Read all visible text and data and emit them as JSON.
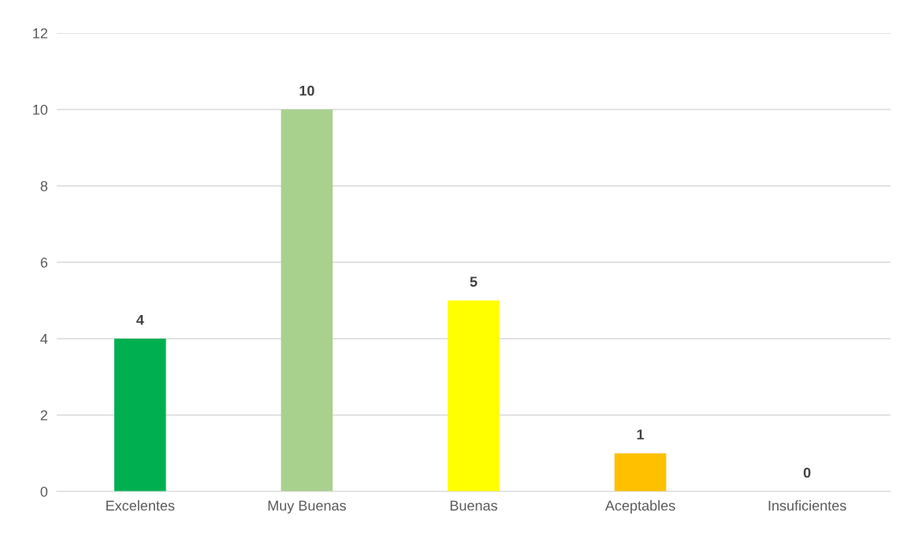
{
  "chart_data": {
    "type": "bar",
    "categories": [
      "Excelentes",
      "Muy Buenas",
      "Buenas",
      "Aceptables",
      "Insuficientes"
    ],
    "values": [
      4,
      10,
      5,
      1,
      0
    ],
    "colors": [
      "#00b050",
      "#a9d18e",
      "#ffff00",
      "#ffc000",
      "#ff0000"
    ],
    "ylim": [
      0,
      12
    ],
    "yticks": [
      0,
      2,
      4,
      6,
      8,
      10,
      12
    ],
    "grid": "y",
    "data_labels": true
  }
}
